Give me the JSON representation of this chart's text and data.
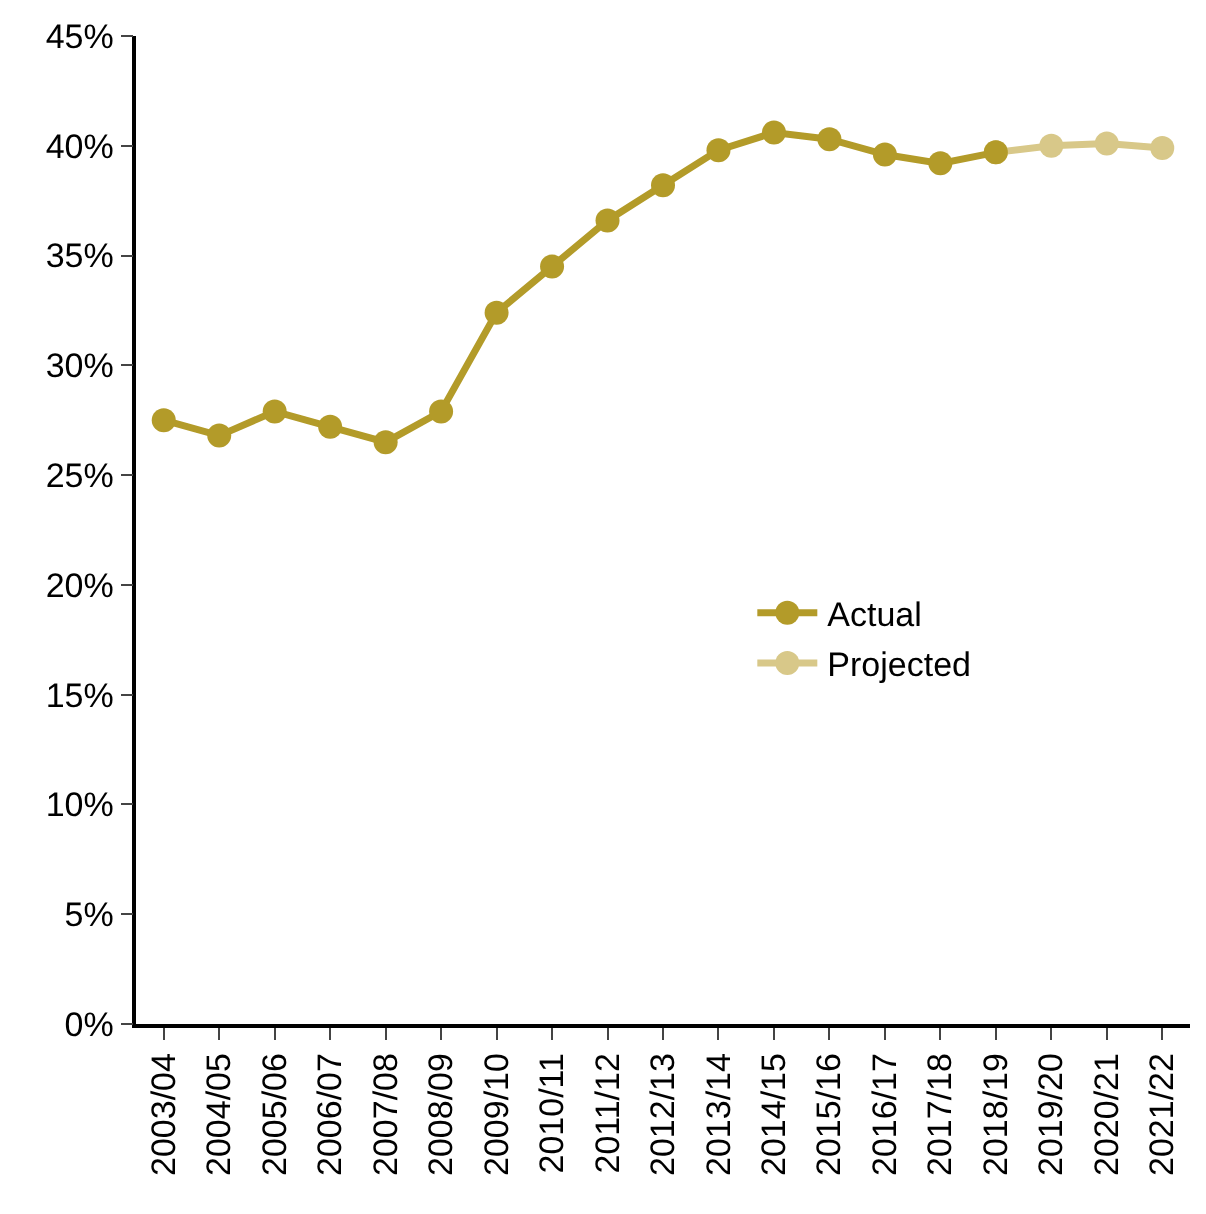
{
  "chart_data": {
    "type": "line",
    "categories": [
      "2003/04",
      "2004/05",
      "2005/06",
      "2006/07",
      "2007/08",
      "2008/09",
      "2009/10",
      "2010/11",
      "2011/12",
      "2012/13",
      "2013/14",
      "2014/15",
      "2015/16",
      "2016/17",
      "2017/18",
      "2018/19",
      "2019/20",
      "2020/21",
      "2021/22"
    ],
    "series": [
      {
        "name": "Actual",
        "color": "#b39b29",
        "values": [
          27.5,
          26.8,
          27.9,
          27.2,
          26.5,
          27.9,
          32.4,
          34.5,
          36.6,
          38.2,
          39.8,
          40.6,
          40.3,
          39.6,
          39.2,
          39.7,
          null,
          null,
          null
        ]
      },
      {
        "name": "Projected",
        "color": "#d8c889",
        "values": [
          null,
          null,
          null,
          null,
          null,
          null,
          null,
          null,
          null,
          null,
          null,
          null,
          null,
          null,
          null,
          39.7,
          40.0,
          40.1,
          39.9
        ]
      }
    ],
    "ylim": [
      0,
      45
    ],
    "yticks": [
      {
        "value": 0,
        "label": "0%"
      },
      {
        "value": 5,
        "label": "5%"
      },
      {
        "value": 10,
        "label": "10%"
      },
      {
        "value": 15,
        "label": "15%"
      },
      {
        "value": 20,
        "label": "20%"
      },
      {
        "value": 25,
        "label": "25%"
      },
      {
        "value": 30,
        "label": "30%"
      },
      {
        "value": 35,
        "label": "35%"
      },
      {
        "value": 40,
        "label": "40%"
      },
      {
        "value": 45,
        "label": "45%"
      }
    ],
    "legend": "right",
    "marker": "circle",
    "line_style": "solid"
  }
}
